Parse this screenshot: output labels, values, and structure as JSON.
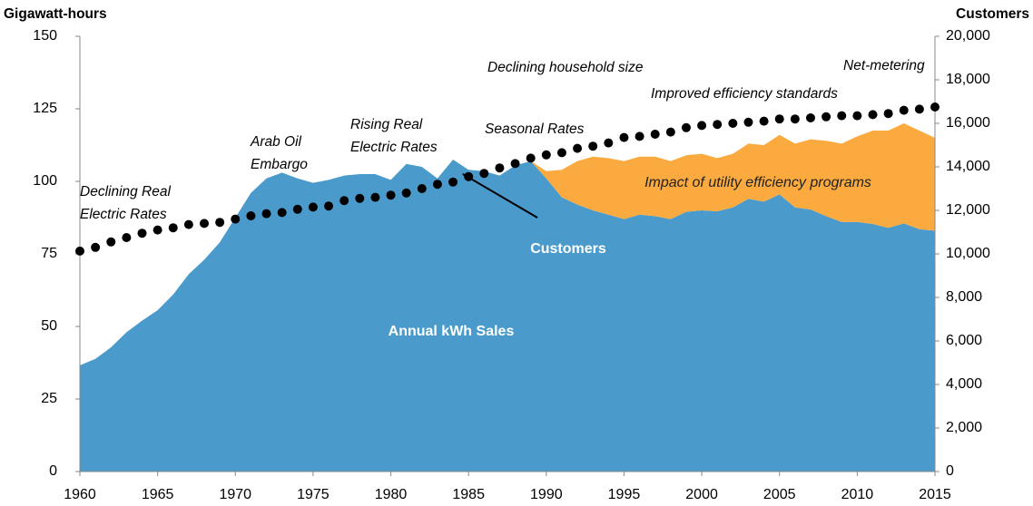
{
  "chart_data": {
    "type": "area",
    "stacked": true,
    "y_label": "Gigawatt-hours",
    "y2_label": "Customers",
    "x": [
      1960,
      1961,
      1962,
      1963,
      1964,
      1965,
      1966,
      1967,
      1968,
      1969,
      1970,
      1971,
      1972,
      1973,
      1974,
      1975,
      1976,
      1977,
      1978,
      1979,
      1980,
      1981,
      1982,
      1983,
      1984,
      1985,
      1986,
      1987,
      1988,
      1989,
      1990,
      1991,
      1992,
      1993,
      1994,
      1995,
      1996,
      1997,
      1998,
      1999,
      2000,
      2001,
      2002,
      2003,
      2004,
      2005,
      2006,
      2007,
      2008,
      2009,
      2010,
      2011,
      2012,
      2013,
      2014,
      2015
    ],
    "xlim": [
      1960,
      2015
    ],
    "xticks": [
      1960,
      1965,
      1970,
      1975,
      1980,
      1985,
      1990,
      1995,
      2000,
      2005,
      2010,
      2015
    ],
    "ylim": [
      0,
      150
    ],
    "yticks": [
      0,
      25,
      50,
      75,
      100,
      125,
      150
    ],
    "y2lim": [
      0,
      20000
    ],
    "y2ticks": [
      0,
      {
        "value": 2000,
        "label": "2,000"
      },
      {
        "value": 4000,
        "label": "4,000"
      },
      {
        "value": 6000,
        "label": "6,000"
      },
      {
        "value": 8000,
        "label": "8,000"
      },
      {
        "value": 10000,
        "label": "10,000"
      },
      {
        "value": 12000,
        "label": "12,000"
      },
      {
        "value": 14000,
        "label": "14,000"
      },
      {
        "value": 16000,
        "label": "16,000"
      },
      {
        "value": 18000,
        "label": "18,000"
      },
      {
        "value": 20000,
        "label": "20,000"
      }
    ],
    "grid": false,
    "series": [
      {
        "name": "Annual kWh Sales",
        "type": "area",
        "color": "#4a9bcc",
        "values": [
          36.6,
          38.8,
          42.8,
          48,
          52,
          55.6,
          61,
          68,
          73,
          79,
          87.5,
          96,
          101,
          103,
          101,
          99.5,
          100.5,
          102,
          102.5,
          102.5,
          100.5,
          106,
          105,
          101,
          107.5,
          104,
          103.5,
          102,
          105.5,
          107,
          101,
          94.5,
          92,
          90,
          88.5,
          87,
          88.5,
          88,
          87,
          89.5,
          90,
          89.7,
          91,
          94,
          93,
          95.5,
          91,
          90.3,
          88,
          86,
          86,
          85.3,
          84,
          85.5,
          83.5,
          83
        ]
      },
      {
        "name": "Impact of utility efficiency programs",
        "type": "area",
        "color": "#fbaa3f",
        "values": [
          null,
          null,
          null,
          null,
          null,
          null,
          null,
          null,
          null,
          null,
          null,
          null,
          null,
          null,
          null,
          null,
          null,
          null,
          null,
          null,
          null,
          null,
          null,
          null,
          null,
          null,
          null,
          null,
          null,
          0,
          2.5,
          9.5,
          15,
          18.5,
          19.5,
          20,
          20,
          20.5,
          20,
          19.5,
          19.5,
          18.3,
          18.5,
          19,
          19.5,
          20.5,
          22,
          24.2,
          26,
          27,
          29.5,
          32.2,
          33.5,
          34.5,
          34,
          32
        ]
      },
      {
        "name": "Customers",
        "type": "scatter",
        "axis": "y2",
        "color": "#000000",
        "values": [
          10130,
          10300,
          10550,
          10750,
          10950,
          11100,
          11200,
          11350,
          11400,
          11450,
          11600,
          11750,
          11850,
          11900,
          12050,
          12150,
          12200,
          12450,
          12550,
          12600,
          12700,
          12800,
          13000,
          13200,
          13300,
          13550,
          13700,
          13950,
          14150,
          14400,
          14550,
          14650,
          14850,
          14950,
          15100,
          15350,
          15400,
          15500,
          15600,
          15800,
          15900,
          15950,
          16000,
          16050,
          16100,
          16200,
          16200,
          16250,
          16300,
          16350,
          16350,
          16400,
          16450,
          16600,
          16650,
          16750
        ]
      }
    ],
    "annotations": [
      [
        "Declining Real",
        "Electric Rates"
      ],
      [
        "Arab Oil",
        "Embargo"
      ],
      [
        "Rising Real",
        "Electric Rates"
      ],
      [
        "Seasonal Rates"
      ],
      [
        "Declining household size"
      ],
      [
        "Improved efficiency standards"
      ],
      [
        "Net-metering"
      ]
    ]
  }
}
